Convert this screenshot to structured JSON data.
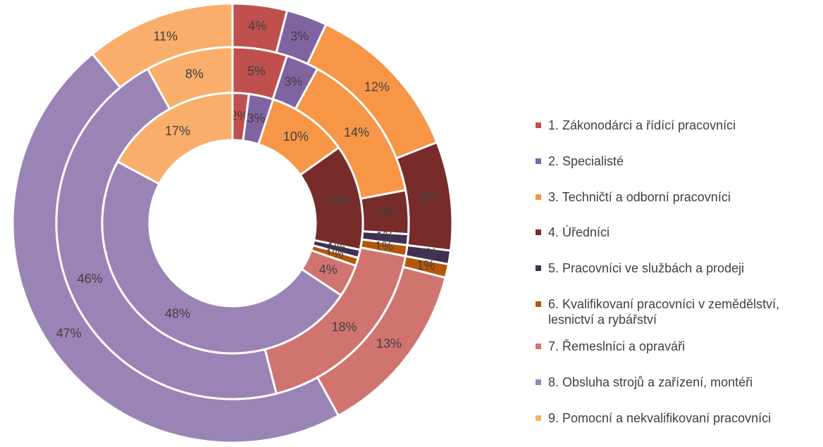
{
  "chart_data": {
    "type": "donut",
    "categories": [
      "1. Zákonodárci a řídící pracovníci",
      "2. Specialisté",
      "3. Techničtí a odborní pracovníci",
      "4. Úředníci",
      "5. Pracovníci ve službách a prodeji",
      "6. Kvalifikovaní pracovníci v zemědělství, lesnictví a rybářství",
      "7. Řemeslníci a opraváři",
      "8. Obsluha strojů a zařízení, montéři",
      "9. Pomocní a nekvalifikovaní pracovníci"
    ],
    "colors": [
      "#c0504d",
      "#8064a2",
      "#f79646",
      "#772c2a",
      "#403152",
      "#b65708",
      "#d07470",
      "#9a84b5",
      "#f9ae6b"
    ],
    "series": [
      {
        "values": [
          4,
          3,
          12,
          8,
          1,
          1,
          13,
          47,
          11
        ],
        "value_labels": [
          "4%",
          "3%",
          "12%",
          "8%",
          "1%",
          "1%",
          "13%",
          "47%",
          "11%"
        ]
      },
      {
        "values": [
          5,
          3,
          14,
          4,
          1,
          1,
          18,
          46,
          8
        ],
        "value_labels": [
          "5%",
          "3%",
          "14%",
          "4%",
          "1%",
          "1%",
          "18%",
          "46%",
          "8%"
        ]
      },
      {
        "values": [
          2,
          3,
          10,
          13,
          1,
          1,
          4,
          48,
          17
        ],
        "value_labels": [
          "2%",
          "3%",
          "10%",
          "13%",
          "1%",
          "1%",
          "4%",
          "48%",
          "17%"
        ]
      }
    ]
  }
}
